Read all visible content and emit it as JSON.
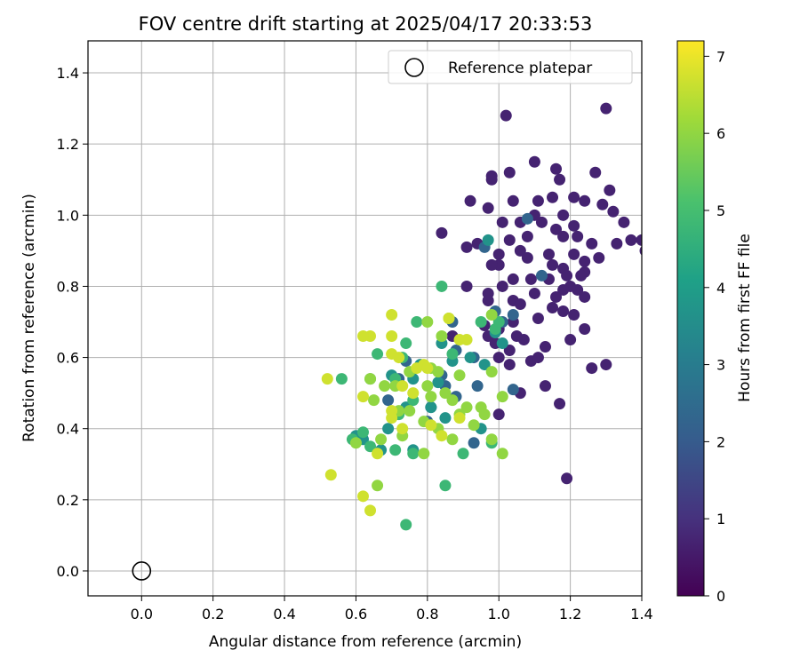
{
  "chart_data": {
    "type": "scatter",
    "title": "FOV centre drift starting at 2025/04/17 20:33:53",
    "xlabel": "Angular distance from reference (arcmin)",
    "ylabel": "Rotation from reference (arcmin)",
    "xlim": [
      -0.15,
      1.4
    ],
    "ylim": [
      -0.07,
      1.49
    ],
    "xticks": [
      "0.0",
      "0.2",
      "0.4",
      "0.6",
      "0.8",
      "1.0",
      "1.2",
      "1.4"
    ],
    "yticks": [
      "0.0",
      "0.2",
      "0.4",
      "0.6",
      "0.8",
      "1.0",
      "1.2",
      "1.4"
    ],
    "grid": true,
    "legend": {
      "position": "top-right",
      "entries": [
        "Reference platepar"
      ]
    },
    "reference_point": {
      "x": 0.0,
      "y": 0.0
    },
    "colorbar": {
      "label": "Hours from first FF file",
      "colormap": "viridis",
      "range": [
        0,
        7.2
      ],
      "ticks": [
        "0",
        "1",
        "2",
        "3",
        "4",
        "5",
        "6",
        "7"
      ]
    },
    "series": [
      {
        "hours": 0.7,
        "points": [
          [
            1.02,
            1.28
          ],
          [
            1.3,
            1.3
          ],
          [
            0.98,
            1.11
          ],
          [
            1.03,
            1.12
          ],
          [
            1.1,
            1.15
          ],
          [
            1.16,
            1.13
          ],
          [
            1.27,
            1.12
          ],
          [
            1.17,
            1.1
          ],
          [
            0.98,
            1.1
          ],
          [
            1.31,
            1.07
          ],
          [
            1.04,
            1.04
          ],
          [
            1.11,
            1.04
          ],
          [
            1.15,
            1.05
          ],
          [
            1.21,
            1.05
          ],
          [
            1.24,
            1.04
          ],
          [
            0.92,
            1.04
          ],
          [
            0.97,
            1.02
          ],
          [
            1.29,
            1.03
          ],
          [
            1.32,
            1.01
          ],
          [
            1.18,
            1.0
          ],
          [
            1.06,
            0.98
          ],
          [
            1.12,
            0.98
          ],
          [
            1.01,
            0.98
          ],
          [
            1.21,
            0.97
          ],
          [
            1.16,
            0.96
          ],
          [
            1.22,
            0.94
          ],
          [
            1.18,
            0.94
          ],
          [
            1.08,
            0.94
          ],
          [
            1.03,
            0.93
          ],
          [
            1.37,
            0.93
          ],
          [
            1.4,
            0.93
          ],
          [
            1.33,
            0.92
          ],
          [
            1.26,
            0.92
          ],
          [
            0.91,
            0.91
          ],
          [
            1.06,
            0.9
          ],
          [
            1.0,
            0.89
          ],
          [
            1.14,
            0.89
          ],
          [
            1.21,
            0.89
          ],
          [
            1.24,
            0.87
          ],
          [
            1.28,
            0.88
          ],
          [
            1.15,
            0.86
          ],
          [
            1.0,
            0.86
          ],
          [
            1.08,
            0.88
          ],
          [
            0.98,
            0.86
          ],
          [
            1.18,
            0.85
          ],
          [
            1.24,
            0.84
          ],
          [
            1.19,
            0.83
          ],
          [
            1.23,
            0.83
          ],
          [
            1.09,
            0.82
          ],
          [
            1.14,
            0.82
          ],
          [
            1.04,
            0.82
          ],
          [
            1.01,
            0.8
          ],
          [
            0.91,
            0.8
          ],
          [
            1.2,
            0.8
          ],
          [
            1.18,
            0.79
          ],
          [
            1.22,
            0.79
          ],
          [
            0.97,
            0.78
          ],
          [
            1.1,
            0.78
          ],
          [
            1.16,
            0.77
          ],
          [
            1.24,
            0.77
          ],
          [
            1.04,
            0.76
          ],
          [
            0.97,
            0.76
          ],
          [
            1.06,
            0.75
          ],
          [
            1.15,
            0.74
          ],
          [
            1.18,
            0.73
          ],
          [
            1.21,
            0.72
          ],
          [
            1.11,
            0.71
          ],
          [
            1.04,
            0.7
          ],
          [
            0.96,
            0.69
          ],
          [
            1.0,
            0.68
          ],
          [
            1.24,
            0.68
          ],
          [
            1.05,
            0.66
          ],
          [
            0.99,
            0.64
          ],
          [
            1.07,
            0.65
          ],
          [
            0.97,
            0.66
          ],
          [
            0.87,
            0.66
          ],
          [
            1.13,
            0.63
          ],
          [
            1.2,
            0.65
          ],
          [
            1.03,
            0.62
          ],
          [
            1.0,
            0.6
          ],
          [
            1.09,
            0.59
          ],
          [
            1.11,
            0.6
          ],
          [
            1.03,
            0.58
          ],
          [
            1.26,
            0.57
          ],
          [
            1.3,
            0.58
          ],
          [
            1.13,
            0.52
          ],
          [
            1.06,
            0.5
          ],
          [
            1.17,
            0.47
          ],
          [
            1.19,
            0.26
          ],
          [
            1.0,
            0.44
          ],
          [
            1.41,
            0.9
          ],
          [
            1.1,
            1.0
          ],
          [
            0.84,
            0.95
          ],
          [
            0.94,
            0.92
          ],
          [
            1.35,
            0.98
          ]
        ]
      },
      {
        "hours": 2.3,
        "points": [
          [
            1.08,
            0.99
          ],
          [
            0.96,
            0.91
          ],
          [
            1.12,
            0.83
          ],
          [
            1.01,
            0.7
          ],
          [
            0.99,
            0.73
          ],
          [
            1.04,
            0.72
          ],
          [
            0.88,
            0.62
          ],
          [
            0.93,
            0.6
          ],
          [
            1.04,
            0.51
          ],
          [
            0.85,
            0.52
          ],
          [
            0.94,
            0.52
          ],
          [
            0.88,
            0.49
          ],
          [
            0.81,
            0.46
          ],
          [
            0.84,
            0.55
          ],
          [
            0.8,
            0.42
          ],
          [
            0.93,
            0.36
          ],
          [
            0.72,
            0.54
          ],
          [
            0.69,
            0.48
          ],
          [
            0.74,
            0.59
          ],
          [
            0.87,
            0.7
          ]
        ]
      },
      {
        "hours": 3.7,
        "points": [
          [
            0.97,
            0.93
          ],
          [
            0.99,
            0.67
          ],
          [
            1.01,
            0.64
          ],
          [
            0.92,
            0.6
          ],
          [
            0.96,
            0.58
          ],
          [
            0.87,
            0.59
          ],
          [
            0.84,
            0.64
          ],
          [
            0.78,
            0.58
          ],
          [
            0.7,
            0.55
          ],
          [
            0.76,
            0.54
          ],
          [
            0.83,
            0.53
          ],
          [
            0.74,
            0.46
          ],
          [
            0.81,
            0.46
          ],
          [
            0.69,
            0.4
          ],
          [
            0.67,
            0.34
          ],
          [
            0.62,
            0.37
          ],
          [
            0.6,
            0.38
          ],
          [
            0.76,
            0.34
          ],
          [
            0.95,
            0.4
          ],
          [
            0.85,
            0.43
          ]
        ]
      },
      {
        "hours": 4.8,
        "points": [
          [
            0.84,
            0.8
          ],
          [
            0.77,
            0.7
          ],
          [
            0.99,
            0.68
          ],
          [
            1.0,
            0.7
          ],
          [
            0.74,
            0.64
          ],
          [
            0.73,
            0.6
          ],
          [
            0.66,
            0.61
          ],
          [
            0.56,
            0.54
          ],
          [
            0.64,
            0.54
          ],
          [
            0.71,
            0.54
          ],
          [
            0.76,
            0.48
          ],
          [
            0.72,
            0.44
          ],
          [
            0.71,
            0.34
          ],
          [
            0.76,
            0.33
          ],
          [
            0.62,
            0.39
          ],
          [
            0.59,
            0.37
          ],
          [
            0.64,
            0.35
          ],
          [
            0.9,
            0.33
          ],
          [
            0.85,
            0.24
          ],
          [
            0.74,
            0.13
          ],
          [
            0.98,
            0.36
          ],
          [
            0.87,
            0.61
          ],
          [
            0.95,
            0.7
          ]
        ]
      },
      {
        "hours": 6.0,
        "points": [
          [
            0.86,
            0.71
          ],
          [
            0.98,
            0.72
          ],
          [
            0.8,
            0.7
          ],
          [
            0.84,
            0.66
          ],
          [
            0.89,
            0.55
          ],
          [
            0.98,
            0.56
          ],
          [
            0.83,
            0.56
          ],
          [
            0.75,
            0.56
          ],
          [
            0.8,
            0.52
          ],
          [
            0.71,
            0.52
          ],
          [
            0.64,
            0.54
          ],
          [
            0.68,
            0.52
          ],
          [
            0.65,
            0.48
          ],
          [
            0.72,
            0.45
          ],
          [
            0.79,
            0.42
          ],
          [
            0.81,
            0.49
          ],
          [
            0.85,
            0.5
          ],
          [
            0.87,
            0.48
          ],
          [
            0.91,
            0.46
          ],
          [
            0.93,
            0.41
          ],
          [
            0.83,
            0.4
          ],
          [
            0.89,
            0.44
          ],
          [
            0.95,
            0.46
          ],
          [
            0.96,
            0.44
          ],
          [
            1.01,
            0.49
          ],
          [
            0.87,
            0.37
          ],
          [
            0.79,
            0.33
          ],
          [
            0.73,
            0.38
          ],
          [
            0.67,
            0.37
          ],
          [
            0.6,
            0.36
          ],
          [
            0.66,
            0.24
          ],
          [
            1.01,
            0.33
          ],
          [
            0.98,
            0.37
          ],
          [
            0.75,
            0.45
          ],
          [
            0.81,
            0.57
          ]
        ]
      },
      {
        "hours": 6.7,
        "points": [
          [
            0.7,
            0.72
          ],
          [
            0.86,
            0.71
          ],
          [
            0.89,
            0.65
          ],
          [
            0.64,
            0.66
          ],
          [
            0.62,
            0.66
          ],
          [
            0.7,
            0.66
          ],
          [
            0.7,
            0.61
          ],
          [
            0.72,
            0.6
          ],
          [
            0.77,
            0.57
          ],
          [
            0.79,
            0.58
          ],
          [
            0.73,
            0.52
          ],
          [
            0.8,
            0.57
          ],
          [
            0.7,
            0.45
          ],
          [
            0.7,
            0.43
          ],
          [
            0.73,
            0.4
          ],
          [
            0.81,
            0.41
          ],
          [
            0.84,
            0.38
          ],
          [
            0.89,
            0.43
          ],
          [
            0.62,
            0.49
          ],
          [
            0.66,
            0.33
          ],
          [
            0.52,
            0.54
          ],
          [
            0.53,
            0.27
          ],
          [
            0.62,
            0.21
          ],
          [
            0.64,
            0.17
          ],
          [
            0.91,
            0.65
          ],
          [
            0.76,
            0.5
          ]
        ]
      }
    ]
  }
}
